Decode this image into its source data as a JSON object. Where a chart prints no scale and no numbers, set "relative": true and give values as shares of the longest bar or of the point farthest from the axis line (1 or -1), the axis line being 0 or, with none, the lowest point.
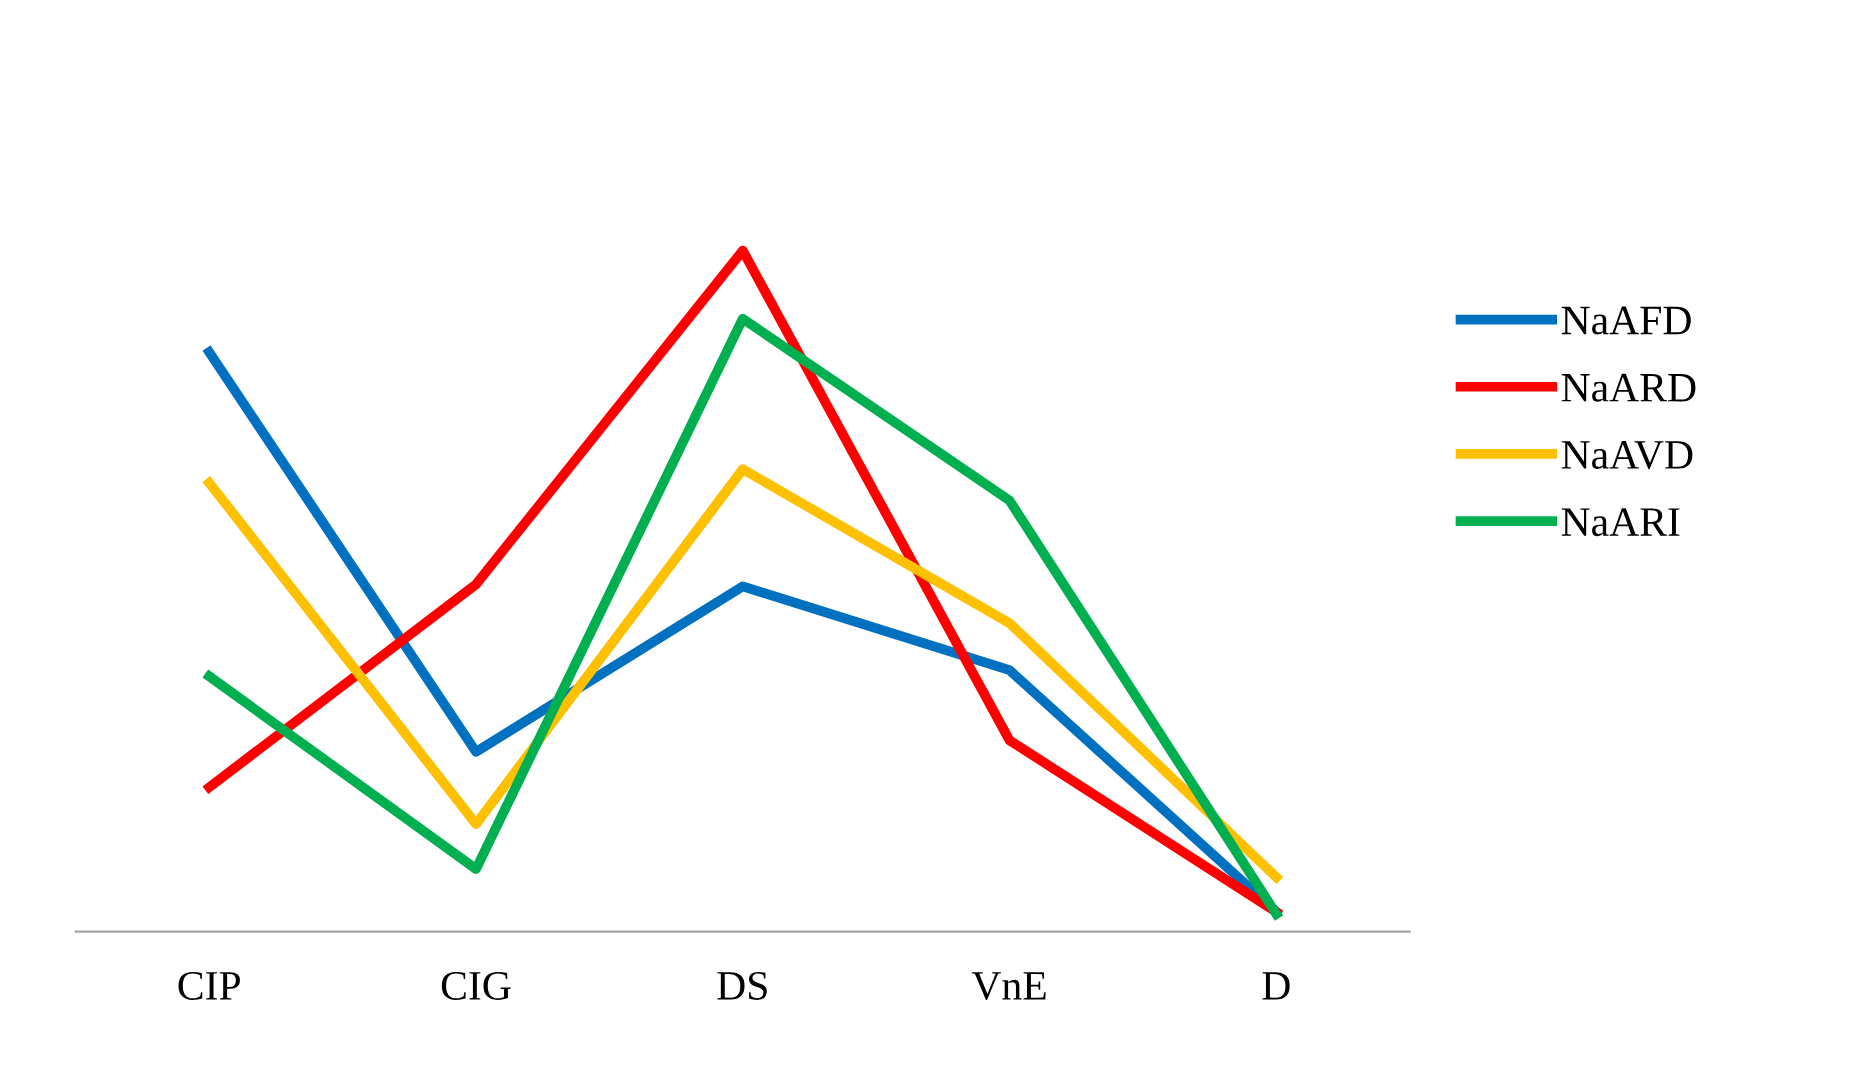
{
  "chart_data": {
    "type": "line",
    "relative": true,
    "categories": [
      "CIP",
      "CIG",
      "DS",
      "VnE",
      "D"
    ],
    "series": [
      {
        "name": "NaAFD",
        "color": "#0070c0",
        "values": [
          0.851,
          0.264,
          0.507,
          0.384,
          0.029
        ]
      },
      {
        "name": "NaARD",
        "color": "#ff0000",
        "values": [
          0.212,
          0.51,
          1,
          0.281,
          0.029
        ]
      },
      {
        "name": "NaAVD",
        "color": "#ffc000",
        "values": [
          0.659,
          0.158,
          0.679,
          0.453,
          0.08
        ]
      },
      {
        "name": "NaARI",
        "color": "#00b050",
        "values": [
          0.375,
          0.092,
          0.9,
          0.633,
          0.026
        ]
      }
    ],
    "legend": "right",
    "grid": false,
    "marker": "none",
    "line_style": "solid"
  }
}
